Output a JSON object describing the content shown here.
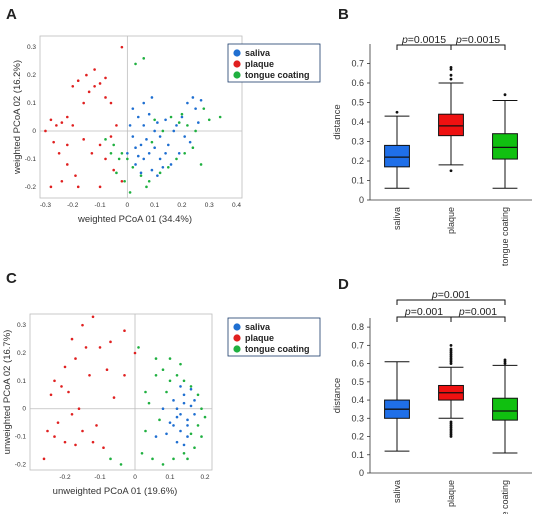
{
  "panels": {
    "A": "A",
    "B": "B",
    "C": "C",
    "D": "D"
  },
  "colors": {
    "saliva": "#1f6fd1",
    "plaque": "#e02020",
    "tongue": "#1fb040",
    "saliva_box": "#1f6fe8",
    "plaque_box": "#ee1111",
    "tongue_box": "#10c010"
  },
  "chart_data": [
    {
      "panel": "A",
      "type": "scatter",
      "xlabel": "weighted PCoA 01 (34.4%)",
      "ylabel": "weighted PCoA 02 (16.2%)",
      "xlim": [
        -0.32,
        0.42
      ],
      "ylim": [
        -0.24,
        0.34
      ],
      "xticks": [
        "-0.3",
        "-0.2",
        "-0.1",
        "0",
        "0.1",
        "0.2",
        "0.3",
        "0.4"
      ],
      "yticks": [
        "-0.2",
        "-0.1",
        "0",
        "0.1",
        "0.2",
        "0.3"
      ],
      "legend": [
        "saliva",
        "plaque",
        "tongue coating"
      ],
      "series": [
        {
          "name": "saliva",
          "points": [
            [
              0.02,
              0.08
            ],
            [
              0.04,
              0.05
            ],
            [
              0.06,
              0.02
            ],
            [
              0.08,
              0.06
            ],
            [
              0.1,
              0.0
            ],
            [
              0.12,
              -0.02
            ],
            [
              0.14,
              0.04
            ],
            [
              0.02,
              -0.02
            ],
            [
              0.05,
              -0.05
            ],
            [
              0.08,
              -0.08
            ],
            [
              0.1,
              -0.06
            ],
            [
              0.12,
              -0.1
            ],
            [
              0.06,
              -0.1
            ],
            [
              0.03,
              -0.12
            ],
            [
              0.0,
              -0.08
            ],
            [
              0.15,
              -0.05
            ],
            [
              0.18,
              0.02
            ],
            [
              0.2,
              0.05
            ],
            [
              0.22,
              0.1
            ],
            [
              0.24,
              0.12
            ],
            [
              0.25,
              0.08
            ],
            [
              0.16,
              -0.12
            ],
            [
              0.13,
              -0.13
            ],
            [
              0.09,
              -0.14
            ],
            [
              0.04,
              -0.09
            ],
            [
              0.07,
              -0.03
            ],
            [
              0.11,
              0.03
            ],
            [
              0.19,
              -0.08
            ],
            [
              0.21,
              -0.02
            ],
            [
              0.26,
              0.03
            ],
            [
              0.01,
              0.02
            ],
            [
              0.03,
              -0.06
            ],
            [
              0.06,
              0.1
            ],
            [
              0.09,
              0.12
            ],
            [
              0.17,
              0.0
            ],
            [
              0.23,
              -0.04
            ],
            [
              0.14,
              -0.08
            ],
            [
              0.05,
              -0.15
            ],
            [
              0.11,
              -0.16
            ],
            [
              0.27,
              0.11
            ]
          ]
        },
        {
          "name": "plaque",
          "points": [
            [
              -0.28,
              0.04
            ],
            [
              -0.26,
              0.02
            ],
            [
              -0.24,
              0.03
            ],
            [
              -0.22,
              0.05
            ],
            [
              -0.2,
              0.02
            ],
            [
              -0.3,
              0.0
            ],
            [
              -0.27,
              -0.04
            ],
            [
              -0.25,
              -0.08
            ],
            [
              -0.22,
              -0.12
            ],
            [
              -0.19,
              -0.16
            ],
            [
              -0.18,
              -0.2
            ],
            [
              -0.16,
              0.1
            ],
            [
              -0.14,
              0.14
            ],
            [
              -0.12,
              0.16
            ],
            [
              -0.1,
              0.17
            ],
            [
              -0.08,
              0.12
            ],
            [
              -0.06,
              0.1
            ],
            [
              -0.2,
              0.16
            ],
            [
              -0.18,
              0.18
            ],
            [
              -0.15,
              0.2
            ],
            [
              -0.12,
              0.22
            ],
            [
              -0.08,
              0.19
            ],
            [
              -0.02,
              0.3
            ],
            [
              -0.1,
              -0.05
            ],
            [
              -0.08,
              -0.1
            ],
            [
              -0.05,
              -0.14
            ],
            [
              -0.02,
              -0.18
            ],
            [
              -0.1,
              -0.2
            ],
            [
              -0.22,
              -0.05
            ],
            [
              -0.16,
              -0.03
            ],
            [
              -0.13,
              -0.08
            ],
            [
              -0.04,
              0.02
            ],
            [
              -0.28,
              -0.2
            ],
            [
              -0.24,
              -0.18
            ],
            [
              -0.06,
              -0.02
            ]
          ]
        },
        {
          "name": "tongue coating",
          "points": [
            [
              -0.08,
              -0.03
            ],
            [
              -0.05,
              -0.05
            ],
            [
              -0.02,
              -0.08
            ],
            [
              0.0,
              -0.1
            ],
            [
              0.02,
              -0.13
            ],
            [
              -0.01,
              -0.18
            ],
            [
              -0.04,
              -0.15
            ],
            [
              -0.06,
              -0.08
            ],
            [
              0.05,
              -0.16
            ],
            [
              0.08,
              -0.18
            ],
            [
              0.12,
              -0.15
            ],
            [
              0.15,
              -0.13
            ],
            [
              0.18,
              -0.1
            ],
            [
              0.2,
              0.06
            ],
            [
              0.22,
              0.02
            ],
            [
              0.25,
              0.0
            ],
            [
              0.3,
              0.04
            ],
            [
              0.34,
              0.05
            ],
            [
              0.28,
              0.08
            ],
            [
              0.24,
              -0.06
            ],
            [
              0.21,
              -0.08
            ],
            [
              0.27,
              -0.12
            ],
            [
              0.03,
              0.24
            ],
            [
              0.06,
              0.26
            ],
            [
              0.1,
              0.04
            ],
            [
              0.13,
              0.0
            ],
            [
              0.16,
              0.05
            ],
            [
              0.19,
              0.03
            ],
            [
              0.07,
              -0.2
            ],
            [
              0.01,
              -0.22
            ],
            [
              -0.03,
              -0.1
            ],
            [
              0.09,
              -0.04
            ]
          ]
        }
      ]
    },
    {
      "panel": "B",
      "type": "box",
      "ylabel": "distance",
      "ylim": [
        0,
        0.8
      ],
      "yticks": [
        "0",
        "0.1",
        "0.2",
        "0.3",
        "0.4",
        "0.5",
        "0.6",
        "0.7"
      ],
      "categories": [
        "saliva",
        "plaque",
        "tongue coating"
      ],
      "boxes": [
        {
          "name": "saliva",
          "min": 0.06,
          "q1": 0.17,
          "median": 0.22,
          "q3": 0.28,
          "max": 0.43,
          "outliers": [
            0.45
          ]
        },
        {
          "name": "plaque",
          "min": 0.18,
          "q1": 0.33,
          "median": 0.38,
          "q3": 0.44,
          "max": 0.6,
          "outliers": [
            0.62,
            0.64,
            0.67,
            0.68,
            0.15
          ]
        },
        {
          "name": "tongue coating",
          "min": 0.06,
          "q1": 0.21,
          "median": 0.27,
          "q3": 0.34,
          "max": 0.51,
          "outliers": [
            0.54
          ]
        }
      ],
      "annotations": [
        {
          "text": "p=0.0015",
          "from": 0,
          "to": 1
        },
        {
          "text": "p=0.0015",
          "from": 1,
          "to": 2
        }
      ]
    },
    {
      "panel": "C",
      "type": "scatter",
      "xlabel": "unweighted PCoA 01 (19.6%)",
      "ylabel": "unweighted PCoA 02 (16.7%)",
      "xlim": [
        -0.3,
        0.22
      ],
      "ylim": [
        -0.22,
        0.34
      ],
      "xticks": [
        "-0.2",
        "-0.1",
        "0",
        "0.1",
        "0.2"
      ],
      "yticks": [
        "-0.2",
        "-0.1",
        "0",
        "0.1",
        "0.2",
        "0.3"
      ],
      "legend": [
        "saliva",
        "plaque",
        "tongue coating"
      ],
      "series": [
        {
          "name": "saliva",
          "points": [
            [
              0.12,
              0.0
            ],
            [
              0.13,
              -0.02
            ],
            [
              0.14,
              0.02
            ],
            [
              0.15,
              -0.04
            ],
            [
              0.16,
              0.01
            ],
            [
              0.11,
              -0.06
            ],
            [
              0.13,
              -0.08
            ],
            [
              0.15,
              -0.1
            ],
            [
              0.12,
              -0.12
            ],
            [
              0.1,
              -0.05
            ],
            [
              0.14,
              0.05
            ],
            [
              0.16,
              0.07
            ],
            [
              0.17,
              0.03
            ],
            [
              0.09,
              -0.09
            ],
            [
              0.11,
              0.03
            ],
            [
              0.13,
              0.08
            ],
            [
              0.15,
              -0.06
            ],
            [
              0.08,
              0.0
            ],
            [
              0.12,
              -0.03
            ],
            [
              0.06,
              -0.1
            ],
            [
              0.14,
              -0.13
            ],
            [
              0.17,
              -0.02
            ]
          ]
        },
        {
          "name": "plaque",
          "points": [
            [
              -0.18,
              0.25
            ],
            [
              -0.15,
              0.3
            ],
            [
              -0.12,
              0.33
            ],
            [
              -0.1,
              0.22
            ],
            [
              -0.07,
              0.24
            ],
            [
              -0.14,
              0.22
            ],
            [
              -0.17,
              0.18
            ],
            [
              -0.2,
              0.15
            ],
            [
              -0.13,
              0.12
            ],
            [
              -0.23,
              0.1
            ],
            [
              -0.21,
              0.08
            ],
            [
              -0.19,
              0.06
            ],
            [
              -0.16,
              0.0
            ],
            [
              -0.18,
              -0.02
            ],
            [
              -0.22,
              -0.05
            ],
            [
              -0.25,
              -0.08
            ],
            [
              -0.23,
              -0.1
            ],
            [
              -0.2,
              -0.12
            ],
            [
              -0.15,
              -0.08
            ],
            [
              -0.12,
              -0.12
            ],
            [
              -0.09,
              -0.14
            ],
            [
              -0.06,
              0.04
            ],
            [
              -0.03,
              0.12
            ],
            [
              0.0,
              0.2
            ],
            [
              -0.03,
              0.28
            ],
            [
              -0.26,
              -0.18
            ],
            [
              -0.08,
              0.14
            ],
            [
              -0.11,
              -0.06
            ],
            [
              -0.17,
              -0.13
            ],
            [
              -0.24,
              0.05
            ]
          ]
        },
        {
          "name": "tongue coating",
          "points": [
            [
              0.03,
              0.06
            ],
            [
              0.06,
              0.12
            ],
            [
              0.08,
              0.14
            ],
            [
              0.1,
              0.1
            ],
            [
              0.12,
              0.12
            ],
            [
              0.14,
              0.1
            ],
            [
              0.16,
              0.08
            ],
            [
              0.18,
              0.05
            ],
            [
              0.19,
              0.0
            ],
            [
              0.2,
              -0.03
            ],
            [
              0.18,
              -0.06
            ],
            [
              0.16,
              -0.09
            ],
            [
              0.02,
              -0.16
            ],
            [
              0.05,
              -0.18
            ],
            [
              0.08,
              -0.2
            ],
            [
              0.11,
              -0.18
            ],
            [
              0.14,
              -0.16
            ],
            [
              0.17,
              -0.14
            ],
            [
              0.04,
              0.02
            ],
            [
              0.07,
              -0.04
            ],
            [
              0.03,
              -0.08
            ],
            [
              0.09,
              0.06
            ],
            [
              0.13,
              0.16
            ],
            [
              0.06,
              0.18
            ],
            [
              0.01,
              0.22
            ],
            [
              -0.07,
              -0.18
            ],
            [
              -0.04,
              -0.2
            ],
            [
              0.15,
              -0.18
            ],
            [
              0.19,
              -0.1
            ],
            [
              0.1,
              0.18
            ]
          ]
        }
      ]
    },
    {
      "panel": "D",
      "type": "box",
      "ylabel": "distance",
      "ylim": [
        0,
        0.85
      ],
      "yticks": [
        "0",
        "0.1",
        "0.2",
        "0.3",
        "0.4",
        "0.5",
        "0.6",
        "0.7",
        "0.8"
      ],
      "categories": [
        "saliva",
        "plaque",
        "togue coating"
      ],
      "boxes": [
        {
          "name": "saliva",
          "min": 0.12,
          "q1": 0.3,
          "median": 0.35,
          "q3": 0.4,
          "max": 0.61,
          "outliers": []
        },
        {
          "name": "plaque",
          "min": 0.3,
          "q1": 0.4,
          "median": 0.44,
          "q3": 0.48,
          "max": 0.58,
          "outliers": [
            0.6,
            0.61,
            0.62,
            0.63,
            0.64,
            0.65,
            0.66,
            0.67,
            0.68,
            0.7,
            0.28,
            0.27,
            0.26,
            0.25,
            0.24,
            0.23,
            0.22,
            0.21,
            0.2
          ]
        },
        {
          "name": "togue coating",
          "min": 0.11,
          "q1": 0.29,
          "median": 0.34,
          "q3": 0.41,
          "max": 0.59,
          "outliers": [
            0.6,
            0.61,
            0.62
          ]
        }
      ],
      "annotations": [
        {
          "text": "p=0.001",
          "from": 0,
          "to": 1
        },
        {
          "text": "p=0.001",
          "from": 1,
          "to": 2
        },
        {
          "text": "p=0.001",
          "from": 0,
          "to": 2
        }
      ]
    }
  ]
}
